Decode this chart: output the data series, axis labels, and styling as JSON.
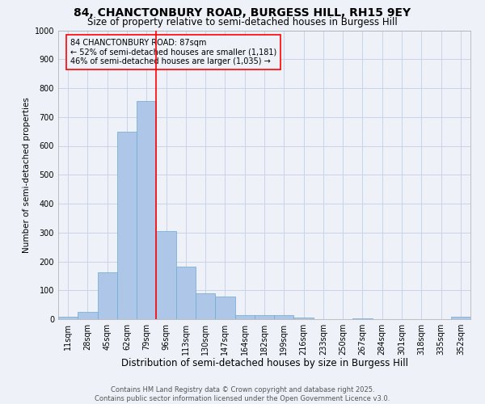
{
  "title1": "84, CHANCTONBURY ROAD, BURGESS HILL, RH15 9EY",
  "title2": "Size of property relative to semi-detached houses in Burgess Hill",
  "xlabel": "Distribution of semi-detached houses by size in Burgess Hill",
  "ylabel": "Number of semi-detached properties",
  "categories": [
    "11sqm",
    "28sqm",
    "45sqm",
    "62sqm",
    "79sqm",
    "96sqm",
    "113sqm",
    "130sqm",
    "147sqm",
    "164sqm",
    "182sqm",
    "199sqm",
    "216sqm",
    "233sqm",
    "250sqm",
    "267sqm",
    "284sqm",
    "301sqm",
    "318sqm",
    "335sqm",
    "352sqm"
  ],
  "values": [
    8,
    25,
    163,
    650,
    755,
    305,
    183,
    90,
    78,
    15,
    15,
    13,
    5,
    0,
    0,
    2,
    0,
    0,
    0,
    0,
    8
  ],
  "bar_color": "#aec6e8",
  "bar_edge_color": "#6aaad4",
  "vline_x": 4.5,
  "vline_color": "red",
  "box_edge_color": "red",
  "annotation_line1": "84 CHANCTONBURY ROAD: 87sqm",
  "annotation_line2": "← 52% of semi-detached houses are smaller (1,181)",
  "annotation_line3": "46% of semi-detached houses are larger (1,035) →",
  "ylim": [
    0,
    1000
  ],
  "yticks": [
    0,
    100,
    200,
    300,
    400,
    500,
    600,
    700,
    800,
    900,
    1000
  ],
  "grid_color": "#c8d4e8",
  "background_color": "#eef2f8",
  "footnote1": "Contains HM Land Registry data © Crown copyright and database right 2025.",
  "footnote2": "Contains public sector information licensed under the Open Government Licence v3.0.",
  "title1_fontsize": 10,
  "title2_fontsize": 8.5,
  "xlabel_fontsize": 8.5,
  "ylabel_fontsize": 7.5,
  "tick_fontsize": 7,
  "annotation_fontsize": 7,
  "footnote_fontsize": 6
}
